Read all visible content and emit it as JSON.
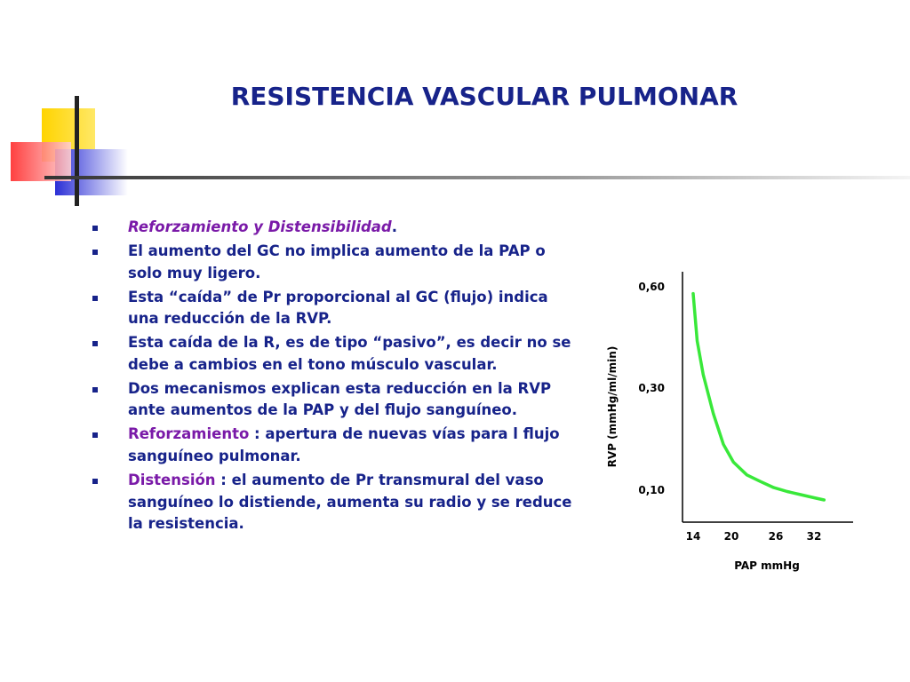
{
  "slide": {
    "title": "RESISTENCIA VASCULAR PULMONAR",
    "colors": {
      "title": "#17238a",
      "body_text": "#17238a",
      "highlight": "#7a1aa8",
      "curve": "#39e83a",
      "deco_yellow": "#ffd400",
      "deco_blue": "#2b2fd6",
      "deco_red": "#ff2b2b"
    },
    "bullets": [
      {
        "lead": "Reforzamiento y Distensibilidad",
        "rest": "."
      },
      {
        "lead": "",
        "rest": "El aumento del GC no implica aumento de la PAP o solo muy ligero."
      },
      {
        "lead": "",
        "rest": "Esta “caída” de Pr proporcional al GC (flujo) indica una reducción de la RVP."
      },
      {
        "lead": "",
        "rest": "Esta caída de la R, es de tipo “pasivo”, es decir no se debe a cambios en el tono músculo vascular."
      },
      {
        "lead": "",
        "rest": "Dos mecanismos explican esta reducción en la RVP ante aumentos de la PAP  y del flujo sanguíneo."
      },
      {
        "lead": "Reforzamiento",
        "rest": " : apertura de nuevas vías para l flujo sanguíneo pulmonar."
      },
      {
        "lead": "Distensión",
        "rest": " : el aumento de Pr transmural del vaso sanguíneo lo distiende, aumenta su radio y se reduce la resistencia."
      }
    ]
  },
  "chart_data": {
    "type": "line",
    "title": "",
    "xlabel": "PAP  mmHg",
    "ylabel": "RVP (mmHg/ml/min)",
    "x_ticks": [
      "14",
      "20",
      "26",
      "32"
    ],
    "y_ticks": [
      "0,60",
      "0,30",
      "0,10"
    ],
    "series": [
      {
        "x": [
          14,
          14.6,
          15.5,
          17,
          18.5,
          20,
          22,
          24,
          26,
          28,
          30,
          32,
          33.5
        ],
        "y": [
          0.58,
          0.44,
          0.34,
          0.25,
          0.19,
          0.155,
          0.13,
          0.117,
          0.105,
          0.097,
          0.09,
          0.083,
          0.078
        ]
      }
    ],
    "curve_color": "#39e83a",
    "grid": false,
    "legend": "none"
  }
}
